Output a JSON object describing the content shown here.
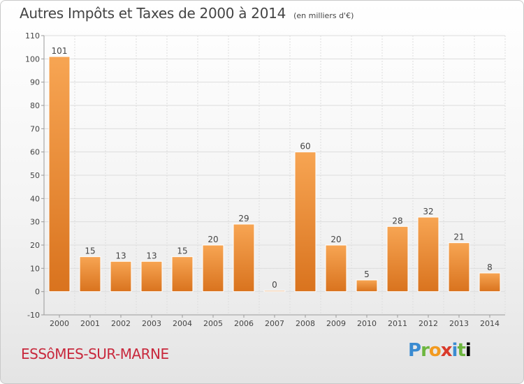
{
  "header": {
    "title": "Autres Impôts et Taxes de 2000 à 2014",
    "unit": "(en milliers d'€)"
  },
  "footer": {
    "commune": "ESSôMES-SUR-MARNE",
    "logo_letters": [
      "P",
      "r",
      "o",
      "x",
      "i",
      "t",
      "i"
    ]
  },
  "colors": {
    "bar_light": "#f7a553",
    "bar_dark": "#d9731e",
    "commune_text": "#c8283c",
    "grid": "#dddddd"
  },
  "chart_data": {
    "type": "bar",
    "title": "Autres Impôts et Taxes de 2000 à 2014",
    "subtitle": "(en milliers d'€)",
    "xlabel": "",
    "ylabel": "",
    "categories": [
      "2000",
      "2001",
      "2002",
      "2003",
      "2004",
      "2005",
      "2006",
      "2007",
      "2008",
      "2009",
      "2010",
      "2011",
      "2012",
      "2013",
      "2014"
    ],
    "values": [
      101,
      15,
      13,
      13,
      15,
      20,
      29,
      0,
      60,
      20,
      5,
      28,
      32,
      21,
      8
    ],
    "ylim": [
      -10,
      110
    ],
    "yticks": [
      -10,
      0,
      10,
      20,
      30,
      40,
      50,
      60,
      70,
      80,
      90,
      100,
      110
    ],
    "grid": true,
    "legend": "none"
  }
}
